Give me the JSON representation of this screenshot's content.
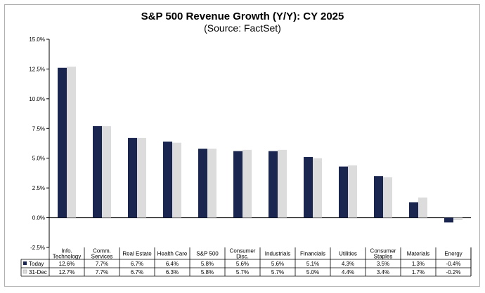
{
  "chart_data": {
    "type": "bar",
    "title": "S&P 500 Revenue Growth (Y/Y): CY 2025",
    "subtitle": "(Source: FactSet)",
    "categories": [
      [
        "Info.",
        "Technology"
      ],
      [
        "Comm.",
        "Services"
      ],
      [
        "Real Estate"
      ],
      [
        "Health Care"
      ],
      [
        "S&P 500"
      ],
      [
        "Consumer",
        "Disc."
      ],
      [
        "Industrials"
      ],
      [
        "Financials"
      ],
      [
        "Utilities"
      ],
      [
        "Consumer",
        "Staples"
      ],
      [
        "Materials"
      ],
      [
        "Energy"
      ]
    ],
    "series": [
      {
        "name": "Today",
        "color": "#1a2650",
        "values": [
          12.6,
          7.7,
          6.7,
          6.4,
          5.8,
          5.6,
          5.6,
          5.1,
          4.3,
          3.5,
          1.3,
          -0.4
        ]
      },
      {
        "name": "31-Dec",
        "color": "#dcdcdc",
        "values": [
          12.7,
          7.7,
          6.7,
          6.3,
          5.8,
          5.7,
          5.7,
          5.0,
          4.4,
          3.4,
          1.7,
          -0.2
        ]
      }
    ],
    "table_values": [
      [
        "12.6%",
        "7.7%",
        "6.7%",
        "6.4%",
        "5.8%",
        "5.6%",
        "5.6%",
        "5.1%",
        "4.3%",
        "3.5%",
        "1.3%",
        "-0.4%"
      ],
      [
        "12.7%",
        "7.7%",
        "6.7%",
        "6.3%",
        "5.8%",
        "5.7%",
        "5.7%",
        "5.0%",
        "4.4%",
        "3.4%",
        "1.7%",
        "-0.2%"
      ]
    ],
    "ylim": [
      -2.5,
      15.0
    ],
    "yticks": [
      -2.5,
      0.0,
      2.5,
      5.0,
      7.5,
      10.0,
      12.5,
      15.0
    ],
    "ytick_labels": [
      "-2.5%",
      "0.0%",
      "2.5%",
      "5.0%",
      "7.5%",
      "10.0%",
      "12.5%",
      "15.0%"
    ],
    "xlabel": "",
    "ylabel": "",
    "grid": false,
    "legend": "data-table"
  }
}
